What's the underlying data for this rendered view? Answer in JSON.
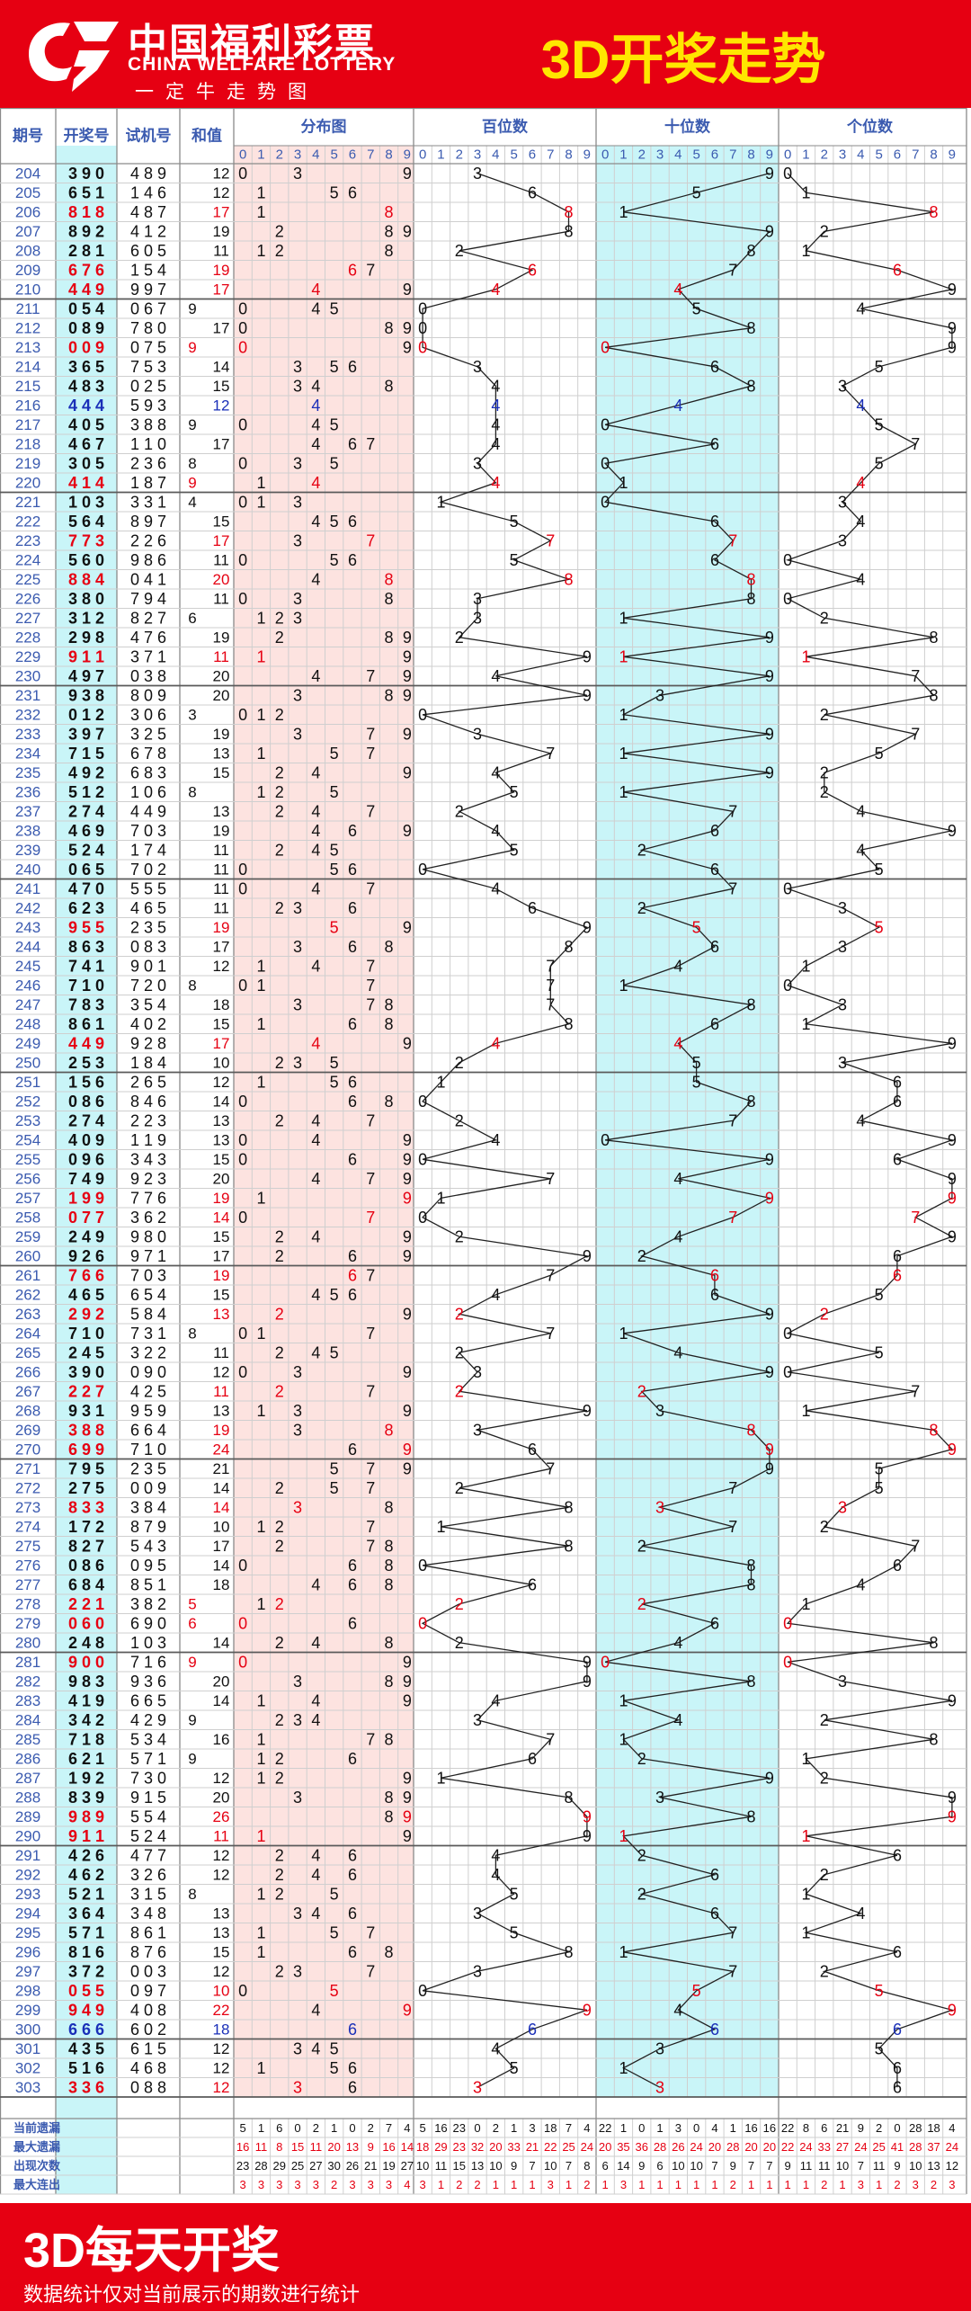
{
  "header": {
    "logo_cn": "中国福利彩票",
    "logo_en": "CHINA WELFARE LOTTERY",
    "logo_slogan": "一定牛走势图",
    "title": "3D开奖走势"
  },
  "footer": {
    "title": "3D每天开奖",
    "note": "数据统计仅对当前展示的期数进行统计"
  },
  "colors": {
    "brand_red": "#e60012",
    "title_yellow": "#ffe600",
    "dist_band": "#fde3e0",
    "tens_band": "#c9f5f8",
    "draw_col": "#c9f5f8",
    "grid": "#cfcfcf",
    "number_red": "#e60012",
    "number_blue": "#1a2fb8",
    "period_blue": "#3b5bb0"
  },
  "chart_data": {
    "type": "table",
    "columns": [
      "期号",
      "开奖号",
      "试机号",
      "和值",
      "分布图",
      "百位数",
      "十位数",
      "个位数"
    ],
    "digit_header": [
      "0",
      "1",
      "2",
      "3",
      "4",
      "5",
      "6",
      "7",
      "8",
      "9"
    ],
    "draws": [
      {
        "p": "204",
        "d": "390",
        "t": "489",
        "s": "12"
      },
      {
        "p": "205",
        "d": "651",
        "t": "146",
        "s": "12"
      },
      {
        "p": "206",
        "d": "818",
        "t": "487",
        "s": "17"
      },
      {
        "p": "207",
        "d": "892",
        "t": "412",
        "s": "19"
      },
      {
        "p": "208",
        "d": "281",
        "t": "605",
        "s": "11"
      },
      {
        "p": "209",
        "d": "676",
        "t": "154",
        "s": "19"
      },
      {
        "p": "210",
        "d": "449",
        "t": "997",
        "s": "17"
      },
      {
        "p": "211",
        "d": "054",
        "t": "067",
        "s": "9"
      },
      {
        "p": "212",
        "d": "089",
        "t": "780",
        "s": "17"
      },
      {
        "p": "213",
        "d": "009",
        "t": "075",
        "s": "9"
      },
      {
        "p": "214",
        "d": "365",
        "t": "753",
        "s": "14"
      },
      {
        "p": "215",
        "d": "483",
        "t": "025",
        "s": "15"
      },
      {
        "p": "216",
        "d": "444",
        "t": "593",
        "s": "12"
      },
      {
        "p": "217",
        "d": "405",
        "t": "388",
        "s": "9"
      },
      {
        "p": "218",
        "d": "467",
        "t": "110",
        "s": "17"
      },
      {
        "p": "219",
        "d": "305",
        "t": "236",
        "s": "8"
      },
      {
        "p": "220",
        "d": "414",
        "t": "187",
        "s": "9"
      },
      {
        "p": "221",
        "d": "103",
        "t": "331",
        "s": "4"
      },
      {
        "p": "222",
        "d": "564",
        "t": "897",
        "s": "15"
      },
      {
        "p": "223",
        "d": "773",
        "t": "226",
        "s": "17"
      },
      {
        "p": "224",
        "d": "560",
        "t": "986",
        "s": "11"
      },
      {
        "p": "225",
        "d": "884",
        "t": "041",
        "s": "20"
      },
      {
        "p": "226",
        "d": "380",
        "t": "794",
        "s": "11"
      },
      {
        "p": "227",
        "d": "312",
        "t": "827",
        "s": "6"
      },
      {
        "p": "228",
        "d": "298",
        "t": "476",
        "s": "19"
      },
      {
        "p": "229",
        "d": "911",
        "t": "371",
        "s": "11"
      },
      {
        "p": "230",
        "d": "497",
        "t": "038",
        "s": "20"
      },
      {
        "p": "231",
        "d": "938",
        "t": "809",
        "s": "20"
      },
      {
        "p": "232",
        "d": "012",
        "t": "306",
        "s": "3"
      },
      {
        "p": "233",
        "d": "397",
        "t": "325",
        "s": "19"
      },
      {
        "p": "234",
        "d": "715",
        "t": "678",
        "s": "13"
      },
      {
        "p": "235",
        "d": "492",
        "t": "683",
        "s": "15"
      },
      {
        "p": "236",
        "d": "512",
        "t": "106",
        "s": "8"
      },
      {
        "p": "237",
        "d": "274",
        "t": "449",
        "s": "13"
      },
      {
        "p": "238",
        "d": "469",
        "t": "703",
        "s": "19"
      },
      {
        "p": "239",
        "d": "524",
        "t": "174",
        "s": "11"
      },
      {
        "p": "240",
        "d": "065",
        "t": "702",
        "s": "11"
      },
      {
        "p": "241",
        "d": "470",
        "t": "555",
        "s": "11"
      },
      {
        "p": "242",
        "d": "623",
        "t": "465",
        "s": "11"
      },
      {
        "p": "243",
        "d": "955",
        "t": "235",
        "s": "19"
      },
      {
        "p": "244",
        "d": "863",
        "t": "083",
        "s": "17"
      },
      {
        "p": "245",
        "d": "741",
        "t": "901",
        "s": "12"
      },
      {
        "p": "246",
        "d": "710",
        "t": "720",
        "s": "8"
      },
      {
        "p": "247",
        "d": "783",
        "t": "354",
        "s": "18"
      },
      {
        "p": "248",
        "d": "861",
        "t": "402",
        "s": "15"
      },
      {
        "p": "249",
        "d": "449",
        "t": "928",
        "s": "17"
      },
      {
        "p": "250",
        "d": "253",
        "t": "184",
        "s": "10"
      },
      {
        "p": "251",
        "d": "156",
        "t": "265",
        "s": "12"
      },
      {
        "p": "252",
        "d": "086",
        "t": "846",
        "s": "14"
      },
      {
        "p": "253",
        "d": "274",
        "t": "223",
        "s": "13"
      },
      {
        "p": "254",
        "d": "409",
        "t": "119",
        "s": "13"
      },
      {
        "p": "255",
        "d": "096",
        "t": "343",
        "s": "15"
      },
      {
        "p": "256",
        "d": "749",
        "t": "923",
        "s": "20"
      },
      {
        "p": "257",
        "d": "199",
        "t": "776",
        "s": "19"
      },
      {
        "p": "258",
        "d": "077",
        "t": "362",
        "s": "14"
      },
      {
        "p": "259",
        "d": "249",
        "t": "980",
        "s": "15"
      },
      {
        "p": "260",
        "d": "926",
        "t": "971",
        "s": "17"
      },
      {
        "p": "261",
        "d": "766",
        "t": "703",
        "s": "19"
      },
      {
        "p": "262",
        "d": "465",
        "t": "654",
        "s": "15"
      },
      {
        "p": "263",
        "d": "292",
        "t": "584",
        "s": "13"
      },
      {
        "p": "264",
        "d": "710",
        "t": "731",
        "s": "8"
      },
      {
        "p": "265",
        "d": "245",
        "t": "322",
        "s": "11"
      },
      {
        "p": "266",
        "d": "390",
        "t": "090",
        "s": "12"
      },
      {
        "p": "267",
        "d": "227",
        "t": "425",
        "s": "11"
      },
      {
        "p": "268",
        "d": "931",
        "t": "959",
        "s": "13"
      },
      {
        "p": "269",
        "d": "388",
        "t": "664",
        "s": "19"
      },
      {
        "p": "270",
        "d": "699",
        "t": "710",
        "s": "24"
      },
      {
        "p": "271",
        "d": "795",
        "t": "235",
        "s": "21"
      },
      {
        "p": "272",
        "d": "275",
        "t": "009",
        "s": "14"
      },
      {
        "p": "273",
        "d": "833",
        "t": "384",
        "s": "14"
      },
      {
        "p": "274",
        "d": "172",
        "t": "879",
        "s": "10"
      },
      {
        "p": "275",
        "d": "827",
        "t": "543",
        "s": "17"
      },
      {
        "p": "276",
        "d": "086",
        "t": "095",
        "s": "14"
      },
      {
        "p": "277",
        "d": "684",
        "t": "851",
        "s": "18"
      },
      {
        "p": "278",
        "d": "221",
        "t": "382",
        "s": "5"
      },
      {
        "p": "279",
        "d": "060",
        "t": "690",
        "s": "6"
      },
      {
        "p": "280",
        "d": "248",
        "t": "103",
        "s": "14"
      },
      {
        "p": "281",
        "d": "900",
        "t": "716",
        "s": "9"
      },
      {
        "p": "282",
        "d": "983",
        "t": "936",
        "s": "20"
      },
      {
        "p": "283",
        "d": "419",
        "t": "665",
        "s": "14"
      },
      {
        "p": "284",
        "d": "342",
        "t": "429",
        "s": "9"
      },
      {
        "p": "285",
        "d": "718",
        "t": "534",
        "s": "16"
      },
      {
        "p": "286",
        "d": "621",
        "t": "571",
        "s": "9"
      },
      {
        "p": "287",
        "d": "192",
        "t": "730",
        "s": "12"
      },
      {
        "p": "288",
        "d": "839",
        "t": "915",
        "s": "20"
      },
      {
        "p": "289",
        "d": "989",
        "t": "554",
        "s": "26"
      },
      {
        "p": "290",
        "d": "911",
        "t": "524",
        "s": "11"
      },
      {
        "p": "291",
        "d": "426",
        "t": "477",
        "s": "12"
      },
      {
        "p": "292",
        "d": "462",
        "t": "326",
        "s": "12"
      },
      {
        "p": "293",
        "d": "521",
        "t": "315",
        "s": "8"
      },
      {
        "p": "294",
        "d": "364",
        "t": "348",
        "s": "13"
      },
      {
        "p": "295",
        "d": "571",
        "t": "861",
        "s": "13"
      },
      {
        "p": "296",
        "d": "816",
        "t": "876",
        "s": "15"
      },
      {
        "p": "297",
        "d": "372",
        "t": "003",
        "s": "12"
      },
      {
        "p": "298",
        "d": "055",
        "t": "097",
        "s": "10"
      },
      {
        "p": "299",
        "d": "949",
        "t": "408",
        "s": "22"
      },
      {
        "p": "300",
        "d": "666",
        "t": "602",
        "s": "18"
      },
      {
        "p": "301",
        "d": "435",
        "t": "615",
        "s": "12"
      },
      {
        "p": "302",
        "d": "516",
        "t": "468",
        "s": "12"
      },
      {
        "p": "303",
        "d": "336",
        "t": "088",
        "s": "12"
      }
    ],
    "stats": [
      {
        "label": "当前遗漏",
        "values": [
          "5",
          "1",
          "6",
          "0",
          "2",
          "1",
          "0",
          "2",
          "7",
          "4",
          "5",
          "16",
          "23",
          "0",
          "2",
          "1",
          "3",
          "18",
          "7",
          "4",
          "22",
          "1",
          "0",
          "1",
          "3",
          "0",
          "4",
          "1",
          "16",
          "16",
          "22",
          "8",
          "6",
          "21",
          "9",
          "2",
          "0",
          "28",
          "18",
          "4"
        ]
      },
      {
        "label": "最大遗漏",
        "values": [
          "16",
          "11",
          "8",
          "15",
          "11",
          "20",
          "13",
          "9",
          "16",
          "14",
          "18",
          "29",
          "23",
          "32",
          "20",
          "33",
          "21",
          "22",
          "25",
          "24",
          "20",
          "35",
          "36",
          "28",
          "26",
          "24",
          "20",
          "28",
          "20",
          "20",
          "22",
          "24",
          "33",
          "27",
          "24",
          "25",
          "41",
          "28",
          "37",
          "24"
        ]
      },
      {
        "label": "出现次数",
        "values": [
          "23",
          "28",
          "29",
          "25",
          "27",
          "30",
          "26",
          "21",
          "19",
          "27",
          "10",
          "11",
          "15",
          "13",
          "10",
          "9",
          "7",
          "10",
          "7",
          "8",
          "6",
          "14",
          "9",
          "6",
          "10",
          "10",
          "7",
          "9",
          "7",
          "7",
          "9",
          "11",
          "11",
          "10",
          "7",
          "11",
          "9",
          "10",
          "13",
          "12"
        ]
      },
      {
        "label": "最大连出",
        "values": [
          "3",
          "3",
          "3",
          "3",
          "3",
          "2",
          "3",
          "3",
          "3",
          "4",
          "3",
          "1",
          "2",
          "2",
          "1",
          "1",
          "1",
          "3",
          "1",
          "2",
          "1",
          "3",
          "1",
          "1",
          "1",
          "1",
          "1",
          "2",
          "1",
          "1",
          "1",
          "1",
          "2",
          "1",
          "3",
          "1",
          "2",
          "3",
          "2",
          "3"
        ]
      }
    ]
  }
}
